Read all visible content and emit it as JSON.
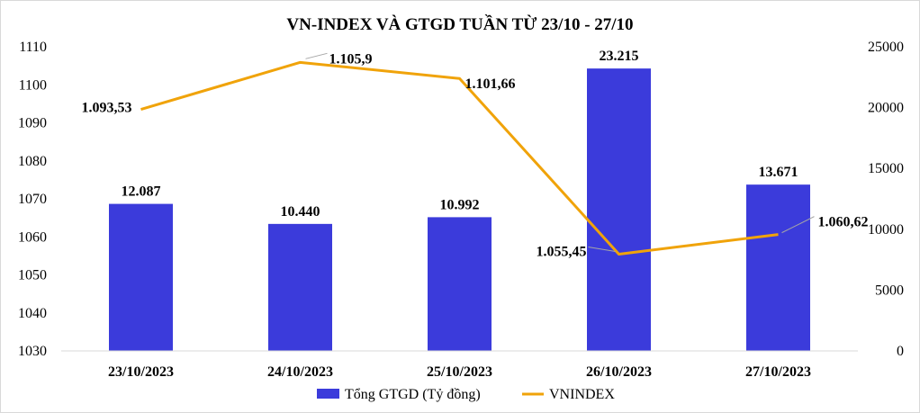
{
  "chart_data": {
    "type": "bar-line-combo",
    "title": "VN-INDEX VÀ GTGD TUẦN TỪ 23/10 - 27/10",
    "categories": [
      "23/10/2023",
      "24/10/2023",
      "25/10/2023",
      "26/10/2023",
      "27/10/2023"
    ],
    "series": [
      {
        "name": "Tổng GTGD (Tỷ đồng)",
        "type": "bar",
        "axis": "right",
        "color": "#3b3bdb",
        "values": [
          12087,
          10440,
          10992,
          23215,
          13671
        ],
        "labels": [
          "12.087",
          "10.440",
          "10.992",
          "23.215",
          "13.671"
        ]
      },
      {
        "name": "VNINDEX",
        "type": "line",
        "axis": "left",
        "color": "#f0a30a",
        "values": [
          1093.53,
          1105.9,
          1101.66,
          1055.45,
          1060.62
        ],
        "labels": [
          "1.093,53",
          "1.105,9",
          "1.101,66",
          "1.055,45",
          "1.060,62"
        ]
      }
    ],
    "y_left": {
      "min": 1030,
      "max": 1110,
      "ticks": [
        "1030",
        "1040",
        "1050",
        "1060",
        "1070",
        "1080",
        "1090",
        "1100",
        "1110"
      ]
    },
    "y_right": {
      "min": 0,
      "max": 25000,
      "ticks": [
        "0",
        "5000",
        "10000",
        "15000",
        "20000",
        "25000"
      ]
    },
    "grid": false,
    "legend_position": "bottom"
  }
}
